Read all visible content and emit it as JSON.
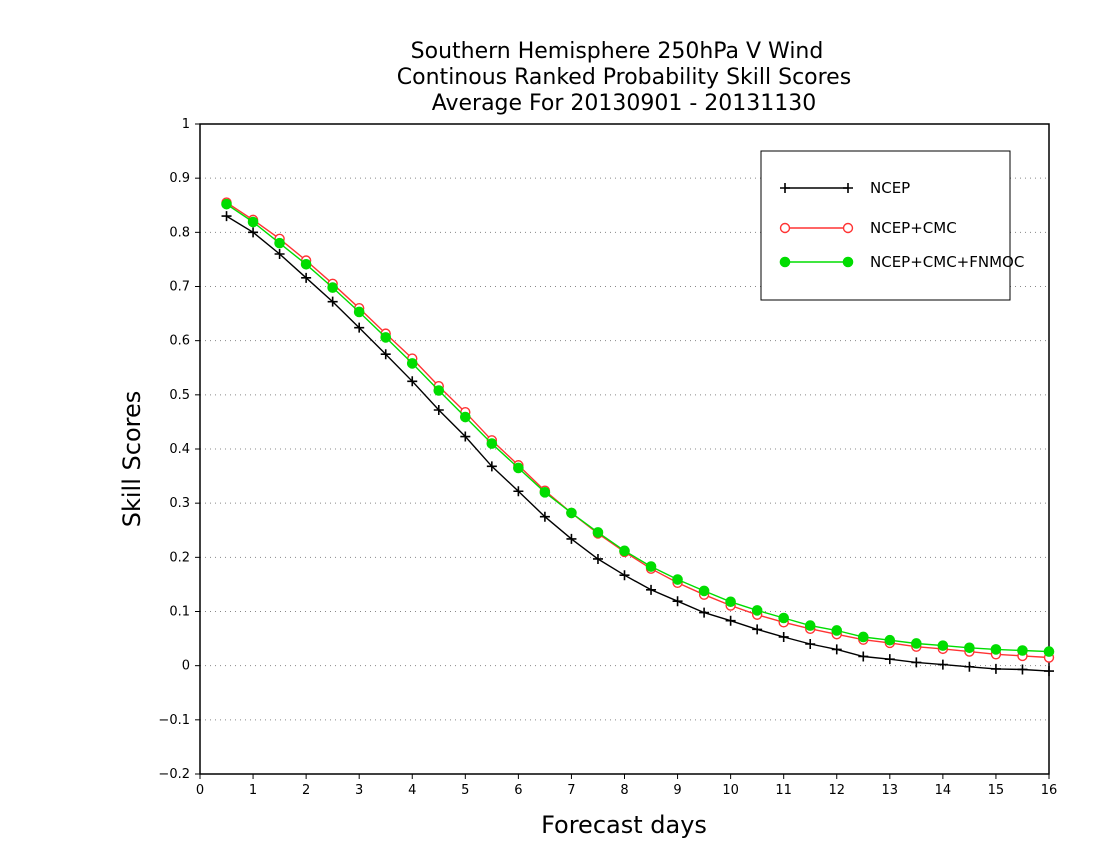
{
  "chart_data": {
    "type": "line",
    "title_lines": [
      "Southern Hemisphere 250hPa V Wind",
      "Continous Ranked Probability Skill Scores",
      "Average For 20130901 - 20131130"
    ],
    "xlabel": "Forecast days",
    "ylabel": "Skill Scores",
    "xlim": [
      0,
      16
    ],
    "ylim": [
      -0.2,
      1
    ],
    "xticks": [
      "0",
      "1",
      "2",
      "3",
      "4",
      "5",
      "6",
      "7",
      "8",
      "9",
      "10",
      "11",
      "12",
      "13",
      "14",
      "15",
      "16"
    ],
    "yticks": [
      "-0.2",
      "-0.1",
      "0",
      "0.1",
      "0.2",
      "0.3",
      "0.4",
      "0.5",
      "0.6",
      "0.7",
      "0.8",
      "0.9",
      "1"
    ],
    "grid": "horizontal dotted",
    "legend_position": "top-right",
    "x": [
      0.5,
      1,
      1.5,
      2,
      2.5,
      3,
      3.5,
      4,
      4.5,
      5,
      5.5,
      6,
      6.5,
      7,
      7.5,
      8,
      8.5,
      9,
      9.5,
      10,
      10.5,
      11,
      11.5,
      12,
      12.5,
      13,
      13.5,
      14,
      14.5,
      15,
      15.5,
      16
    ],
    "series": [
      {
        "name": "NCEP",
        "color": "#000000",
        "marker": "plus",
        "values": [
          0.83,
          0.8,
          0.76,
          0.716,
          0.672,
          0.624,
          0.575,
          0.525,
          0.472,
          0.423,
          0.368,
          0.322,
          0.275,
          0.234,
          0.197,
          0.167,
          0.14,
          0.119,
          0.098,
          0.083,
          0.067,
          0.053,
          0.04,
          0.03,
          0.017,
          0.012,
          0.006,
          0.002,
          -0.002,
          -0.006,
          -0.007,
          -0.01
        ]
      },
      {
        "name": "NCEP+CMC",
        "color": "#ff3333",
        "marker": "open-circle",
        "values": [
          0.855,
          0.823,
          0.788,
          0.748,
          0.705,
          0.66,
          0.613,
          0.567,
          0.516,
          0.468,
          0.416,
          0.37,
          0.323,
          0.282,
          0.244,
          0.21,
          0.179,
          0.153,
          0.131,
          0.111,
          0.094,
          0.08,
          0.068,
          0.058,
          0.048,
          0.042,
          0.035,
          0.031,
          0.026,
          0.021,
          0.018,
          0.015
        ]
      },
      {
        "name": "NCEP+CMC+FNMOC",
        "color": "#00dd00",
        "marker": "filled-circle",
        "values": [
          0.852,
          0.819,
          0.78,
          0.741,
          0.698,
          0.653,
          0.606,
          0.558,
          0.508,
          0.459,
          0.41,
          0.365,
          0.32,
          0.282,
          0.246,
          0.212,
          0.183,
          0.159,
          0.138,
          0.118,
          0.102,
          0.088,
          0.074,
          0.065,
          0.053,
          0.047,
          0.041,
          0.037,
          0.033,
          0.03,
          0.028,
          0.026
        ]
      }
    ]
  }
}
